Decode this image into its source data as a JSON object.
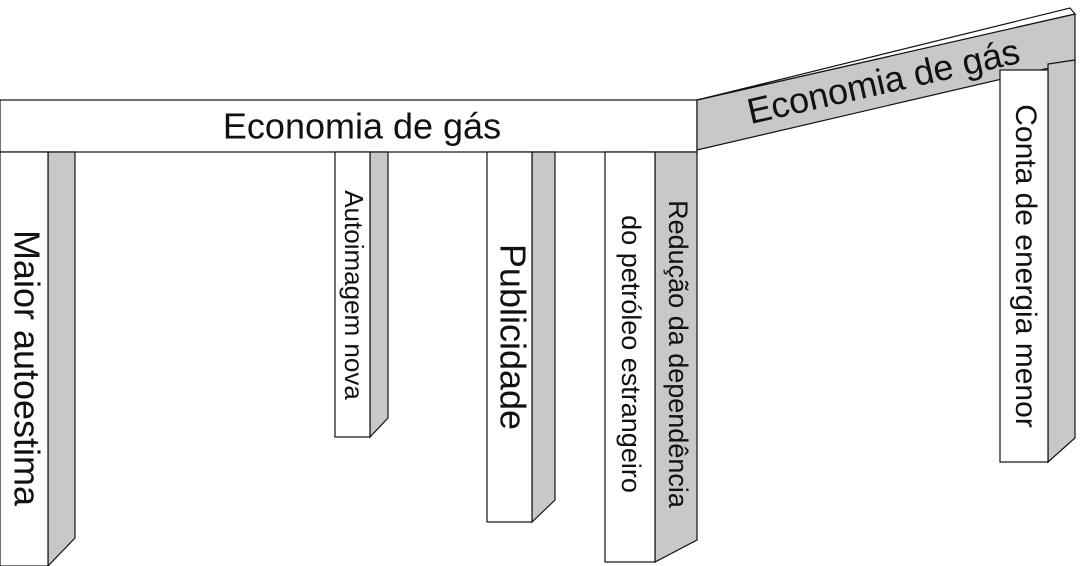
{
  "beams": [
    {
      "label": "Economia de gás"
    },
    {
      "label": "Economia de gás"
    }
  ],
  "legs": [
    {
      "lines": [
        "Maior autoestima"
      ]
    },
    {
      "lines": [
        "Autoimagem nova"
      ]
    },
    {
      "lines": [
        "Publicidade"
      ]
    },
    {
      "lines": [
        "Redução da dependência",
        "do petróleo estrangeiro"
      ]
    },
    {
      "lines": [
        "Conta de energia menor"
      ]
    }
  ]
}
